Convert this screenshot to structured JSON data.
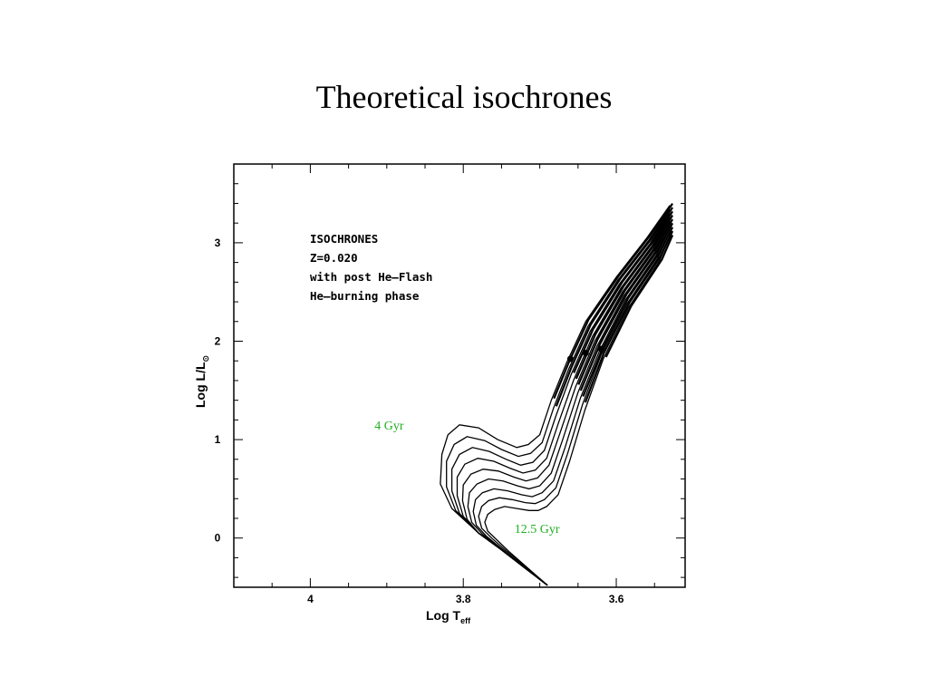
{
  "slide": {
    "title": "Theoretical isochrones"
  },
  "chart_data": {
    "type": "line",
    "title": "",
    "xlabel": "Log T",
    "xlabel_sub": "eff",
    "ylabel": "Log L/L",
    "ylabel_sub": "⊙",
    "xlim": [
      4.1,
      3.51
    ],
    "ylim": [
      -0.5,
      3.8
    ],
    "x_ticks": [
      {
        "value": 4.0,
        "label": "4"
      },
      {
        "value": 3.8,
        "label": "3.8"
      },
      {
        "value": 3.6,
        "label": "3.6"
      }
    ],
    "y_ticks": [
      {
        "value": 0,
        "label": "0"
      },
      {
        "value": 1,
        "label": "1"
      },
      {
        "value": 2,
        "label": "2"
      },
      {
        "value": 3,
        "label": "3"
      }
    ],
    "annotation_lines": [
      "ISOCHRONES",
      "Z=0.020",
      "with post He—Flash",
      "He—burning phase"
    ],
    "age_labels": [
      {
        "text": "4 Gyr",
        "x": 3.916,
        "y": 1.15
      },
      {
        "text": "12.5 Gyr",
        "x": 3.733,
        "y": 0.1
      }
    ],
    "line_color": "#000000",
    "label_color": "#1fb01f",
    "series": [
      {
        "values": [
          [
            3.69,
            -0.48
          ],
          [
            3.72,
            -0.3
          ],
          [
            3.75,
            -0.12
          ],
          [
            3.78,
            0.05
          ],
          [
            3.815,
            0.3
          ],
          [
            3.83,
            0.55
          ],
          [
            3.828,
            0.85
          ],
          [
            3.82,
            1.05
          ],
          [
            3.805,
            1.15
          ],
          [
            3.78,
            1.12
          ],
          [
            3.755,
            1.0
          ],
          [
            3.73,
            0.92
          ],
          [
            3.715,
            0.95
          ],
          [
            3.7,
            1.05
          ],
          [
            3.685,
            1.4
          ],
          [
            3.665,
            1.78
          ],
          [
            3.64,
            2.2
          ],
          [
            3.6,
            2.65
          ],
          [
            3.56,
            3.05
          ],
          [
            3.53,
            3.38
          ]
        ]
      },
      {
        "values": [
          [
            3.69,
            -0.48
          ],
          [
            3.72,
            -0.3
          ],
          [
            3.75,
            -0.12
          ],
          [
            3.78,
            0.05
          ],
          [
            3.81,
            0.28
          ],
          [
            3.822,
            0.52
          ],
          [
            3.822,
            0.78
          ],
          [
            3.812,
            0.95
          ],
          [
            3.795,
            1.03
          ],
          [
            3.772,
            0.99
          ],
          [
            3.75,
            0.9
          ],
          [
            3.728,
            0.83
          ],
          [
            3.712,
            0.86
          ],
          [
            3.697,
            0.97
          ],
          [
            3.682,
            1.32
          ],
          [
            3.662,
            1.72
          ],
          [
            3.637,
            2.15
          ],
          [
            3.598,
            2.62
          ],
          [
            3.558,
            3.02
          ],
          [
            3.53,
            3.34
          ]
        ]
      },
      {
        "values": [
          [
            3.69,
            -0.48
          ],
          [
            3.72,
            -0.3
          ],
          [
            3.75,
            -0.12
          ],
          [
            3.78,
            0.05
          ],
          [
            3.805,
            0.25
          ],
          [
            3.815,
            0.48
          ],
          [
            3.815,
            0.7
          ],
          [
            3.805,
            0.85
          ],
          [
            3.788,
            0.92
          ],
          [
            3.766,
            0.88
          ],
          [
            3.744,
            0.8
          ],
          [
            3.725,
            0.74
          ],
          [
            3.709,
            0.77
          ],
          [
            3.694,
            0.89
          ],
          [
            3.679,
            1.24
          ],
          [
            3.659,
            1.66
          ],
          [
            3.634,
            2.1
          ],
          [
            3.596,
            2.58
          ],
          [
            3.556,
            2.99
          ],
          [
            3.53,
            3.3
          ]
        ]
      },
      {
        "values": [
          [
            3.69,
            -0.48
          ],
          [
            3.72,
            -0.3
          ],
          [
            3.75,
            -0.12
          ],
          [
            3.78,
            0.05
          ],
          [
            3.8,
            0.22
          ],
          [
            3.808,
            0.43
          ],
          [
            3.808,
            0.62
          ],
          [
            3.798,
            0.75
          ],
          [
            3.781,
            0.81
          ],
          [
            3.76,
            0.78
          ],
          [
            3.739,
            0.71
          ],
          [
            3.722,
            0.66
          ],
          [
            3.706,
            0.69
          ],
          [
            3.691,
            0.81
          ],
          [
            3.676,
            1.16
          ],
          [
            3.656,
            1.6
          ],
          [
            3.631,
            2.05
          ],
          [
            3.594,
            2.54
          ],
          [
            3.554,
            2.96
          ],
          [
            3.53,
            3.26
          ]
        ]
      },
      {
        "values": [
          [
            3.69,
            -0.48
          ],
          [
            3.72,
            -0.3
          ],
          [
            3.75,
            -0.12
          ],
          [
            3.78,
            0.05
          ],
          [
            3.795,
            0.19
          ],
          [
            3.801,
            0.38
          ],
          [
            3.8,
            0.54
          ],
          [
            3.79,
            0.65
          ],
          [
            3.774,
            0.7
          ],
          [
            3.754,
            0.68
          ],
          [
            3.734,
            0.62
          ],
          [
            3.718,
            0.58
          ],
          [
            3.703,
            0.61
          ],
          [
            3.688,
            0.74
          ],
          [
            3.673,
            1.08
          ],
          [
            3.653,
            1.54
          ],
          [
            3.628,
            2.0
          ],
          [
            3.592,
            2.5
          ],
          [
            3.552,
            2.93
          ],
          [
            3.53,
            3.22
          ]
        ]
      },
      {
        "values": [
          [
            3.69,
            -0.48
          ],
          [
            3.72,
            -0.3
          ],
          [
            3.75,
            -0.12
          ],
          [
            3.775,
            0.04
          ],
          [
            3.789,
            0.16
          ],
          [
            3.794,
            0.32
          ],
          [
            3.792,
            0.46
          ],
          [
            3.782,
            0.55
          ],
          [
            3.767,
            0.6
          ],
          [
            3.748,
            0.58
          ],
          [
            3.729,
            0.53
          ],
          [
            3.714,
            0.5
          ],
          [
            3.7,
            0.53
          ],
          [
            3.685,
            0.66
          ],
          [
            3.67,
            1.0
          ],
          [
            3.65,
            1.48
          ],
          [
            3.625,
            1.95
          ],
          [
            3.59,
            2.46
          ],
          [
            3.55,
            2.9
          ],
          [
            3.53,
            3.18
          ]
        ]
      },
      {
        "values": [
          [
            3.69,
            -0.48
          ],
          [
            3.72,
            -0.3
          ],
          [
            3.748,
            -0.12
          ],
          [
            3.77,
            0.02
          ],
          [
            3.783,
            0.13
          ],
          [
            3.787,
            0.27
          ],
          [
            3.784,
            0.39
          ],
          [
            3.775,
            0.46
          ],
          [
            3.76,
            0.5
          ],
          [
            3.742,
            0.48
          ],
          [
            3.724,
            0.44
          ],
          [
            3.71,
            0.42
          ],
          [
            3.697,
            0.46
          ],
          [
            3.682,
            0.58
          ],
          [
            3.667,
            0.92
          ],
          [
            3.647,
            1.42
          ],
          [
            3.622,
            1.9
          ],
          [
            3.588,
            2.42
          ],
          [
            3.548,
            2.87
          ],
          [
            3.53,
            3.14
          ]
        ]
      },
      {
        "values": [
          [
            3.69,
            -0.48
          ],
          [
            3.718,
            -0.3
          ],
          [
            3.744,
            -0.13
          ],
          [
            3.763,
            0.0
          ],
          [
            3.776,
            0.1
          ],
          [
            3.78,
            0.22
          ],
          [
            3.776,
            0.32
          ],
          [
            3.767,
            0.38
          ],
          [
            3.753,
            0.41
          ],
          [
            3.736,
            0.39
          ],
          [
            3.719,
            0.36
          ],
          [
            3.706,
            0.35
          ],
          [
            3.694,
            0.39
          ],
          [
            3.679,
            0.51
          ],
          [
            3.664,
            0.85
          ],
          [
            3.644,
            1.36
          ],
          [
            3.62,
            1.86
          ],
          [
            3.586,
            2.38
          ],
          [
            3.546,
            2.84
          ],
          [
            3.53,
            3.1
          ]
        ]
      },
      {
        "values": [
          [
            3.69,
            -0.48
          ],
          [
            3.715,
            -0.31
          ],
          [
            3.74,
            -0.14
          ],
          [
            3.756,
            -0.02
          ],
          [
            3.768,
            0.07
          ],
          [
            3.772,
            0.16
          ],
          [
            3.768,
            0.24
          ],
          [
            3.759,
            0.29
          ],
          [
            3.746,
            0.32
          ],
          [
            3.73,
            0.3
          ],
          [
            3.714,
            0.28
          ],
          [
            3.702,
            0.28
          ],
          [
            3.691,
            0.32
          ],
          [
            3.676,
            0.44
          ],
          [
            3.661,
            0.78
          ],
          [
            3.641,
            1.3
          ],
          [
            3.617,
            1.82
          ],
          [
            3.584,
            2.34
          ],
          [
            3.544,
            2.81
          ],
          [
            3.53,
            3.06
          ]
        ]
      }
    ],
    "red_clump": [
      {
        "x": 3.66,
        "y": 1.82
      },
      {
        "x": 3.64,
        "y": 1.88
      },
      {
        "x": 3.62,
        "y": 1.92
      }
    ]
  }
}
